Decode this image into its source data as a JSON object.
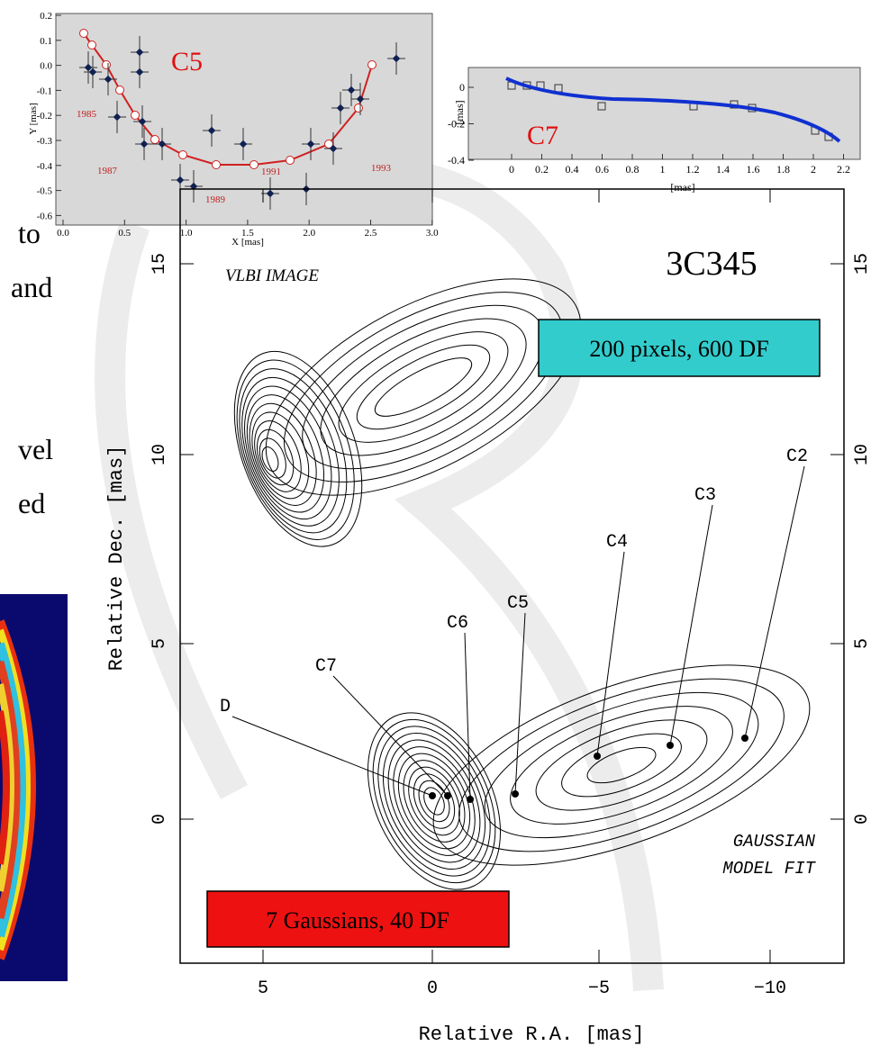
{
  "left_text": [
    "to",
    "and",
    "vel",
    "ed"
  ],
  "plot_c5": {
    "label": "C5",
    "ylabel": "Y [mas]",
    "xlabel": "X [mas]",
    "xticks": [
      "0.0",
      "0.5",
      "1.0",
      "1.5",
      "2.0",
      "2.5",
      "3.0"
    ],
    "yticks": [
      "0.2",
      "0.1",
      "0.0",
      "-0.1",
      "-0.2",
      "-0.3",
      "-0.4",
      "-0.5",
      "-0.6"
    ],
    "years": [
      "1985",
      "1987",
      "1989",
      "1991",
      "1993"
    ]
  },
  "plot_c7": {
    "label": "C7",
    "ylabel": "[mas]",
    "xlabel": "[mas]",
    "xticks": [
      "0",
      "0.2",
      "0.4",
      "0.6",
      "0.8",
      "1",
      "1.2",
      "1.4",
      "1.6",
      "1.8",
      "2",
      "2.2"
    ],
    "yticks": [
      "0",
      "-0.2",
      "-0.4"
    ]
  },
  "main": {
    "title": "3C345",
    "ylabel": "Relative Dec. [mas]",
    "xlabel": "Relative R.A. [mas]",
    "yticks": [
      "15",
      "10",
      "5",
      "0"
    ],
    "xticks": [
      "5",
      "0",
      "−5",
      "−10"
    ],
    "image_label": "VLBI IMAGE",
    "model_label": [
      "GAUSSIAN",
      "MODEL FIT"
    ],
    "components": [
      "D",
      "C7",
      "C6",
      "C5",
      "C4",
      "C3",
      "C2"
    ],
    "box_top": "200 pixels, 600 DF",
    "box_bottom": "7 Gaussians, 40 DF"
  }
}
